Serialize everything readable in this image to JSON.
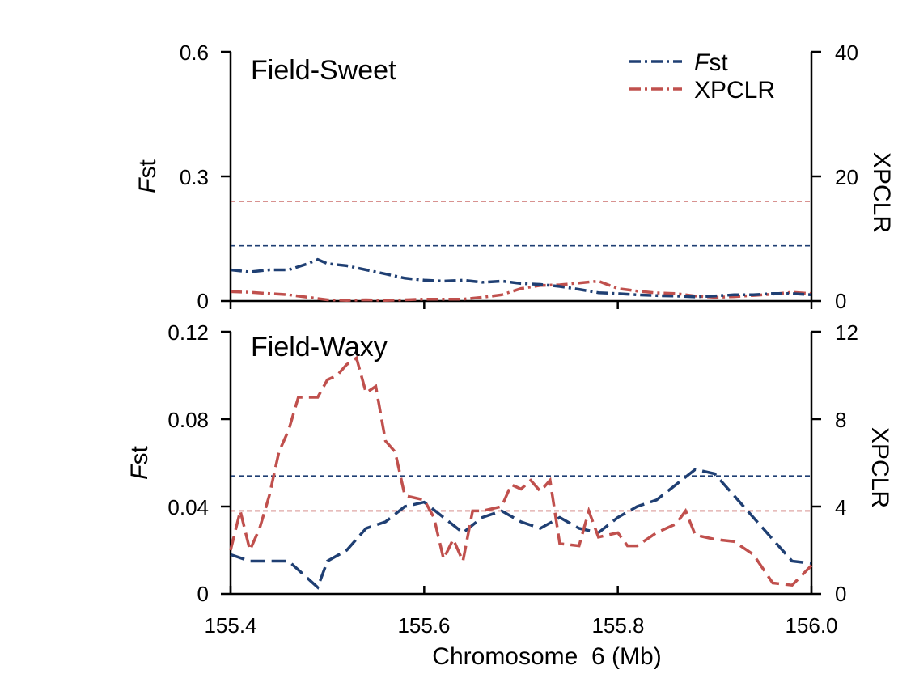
{
  "colors": {
    "fst": "#1f3f73",
    "xpclr": "#c0504d",
    "axis": "#000000"
  },
  "chart_data": [
    {
      "type": "line",
      "title": "Field-Sweet",
      "xlabel": "Chromosome  6 (Mb)",
      "ylabel_left": {
        "italic": "F",
        "rest": "st"
      },
      "ylabel_right": "XPCLR",
      "xlim": [
        155.4,
        156.0
      ],
      "ylim_left": [
        0,
        0.6
      ],
      "ylim_right": [
        0,
        40
      ],
      "yticks_left": [
        "0",
        "0.3",
        "0.6"
      ],
      "yticks_right": [
        "0",
        "20",
        "40"
      ],
      "legend": {
        "position": "top-right",
        "fst_italic": "F",
        "fst_rest": "st",
        "xpclr": "XPCLR"
      },
      "thresholds": {
        "fst": 0.133,
        "xpclr": 16.0
      },
      "series": [
        {
          "name": "Fst",
          "axis": "left",
          "x": [
            155.4,
            155.42,
            155.44,
            155.46,
            155.48,
            155.49,
            155.5,
            155.52,
            155.54,
            155.56,
            155.58,
            155.6,
            155.62,
            155.64,
            155.66,
            155.68,
            155.7,
            155.72,
            155.74,
            155.76,
            155.78,
            155.8,
            155.82,
            155.84,
            155.86,
            155.88,
            155.9,
            155.92,
            155.94,
            155.96,
            155.98,
            156.0
          ],
          "values": [
            0.075,
            0.07,
            0.075,
            0.075,
            0.09,
            0.1,
            0.09,
            0.085,
            0.075,
            0.065,
            0.055,
            0.05,
            0.048,
            0.05,
            0.045,
            0.048,
            0.042,
            0.04,
            0.035,
            0.028,
            0.02,
            0.018,
            0.015,
            0.013,
            0.012,
            0.01,
            0.012,
            0.015,
            0.015,
            0.018,
            0.018,
            0.015
          ]
        },
        {
          "name": "XPCLR",
          "axis": "right",
          "x": [
            155.4,
            155.42,
            155.44,
            155.46,
            155.48,
            155.5,
            155.52,
            155.54,
            155.56,
            155.58,
            155.6,
            155.62,
            155.64,
            155.66,
            155.68,
            155.7,
            155.72,
            155.74,
            155.76,
            155.78,
            155.8,
            155.82,
            155.84,
            155.86,
            155.88,
            155.9,
            155.92,
            155.94,
            155.96,
            155.98,
            156.0
          ],
          "values": [
            1.5,
            1.4,
            1.2,
            1.0,
            0.6,
            0.2,
            0.1,
            0.2,
            0.1,
            0.2,
            0.3,
            0.3,
            0.3,
            0.6,
            1.0,
            2.0,
            2.5,
            2.6,
            2.9,
            3.2,
            2.0,
            1.6,
            1.3,
            1.2,
            0.8,
            0.6,
            0.7,
            0.9,
            1.1,
            1.4,
            1.2
          ]
        }
      ]
    },
    {
      "type": "line",
      "title": "Field-Waxy",
      "xlabel": "Chromosome  6 (Mb)",
      "ylabel_left": {
        "italic": "F",
        "rest": "st"
      },
      "ylabel_right": "XPCLR",
      "xlim": [
        155.4,
        156.0
      ],
      "ylim_left": [
        0,
        0.12
      ],
      "ylim_right": [
        0,
        12
      ],
      "yticks_left": [
        "0",
        "0.04",
        "0.08",
        "0.12"
      ],
      "yticks_right": [
        "0",
        "4",
        "8",
        "12"
      ],
      "xticks": [
        "155.4",
        "155.6",
        "155.8",
        "156.0"
      ],
      "thresholds": {
        "fst": 0.054,
        "xpclr": 3.8
      },
      "series": [
        {
          "name": "Fst",
          "axis": "left",
          "x": [
            155.4,
            155.42,
            155.44,
            155.46,
            155.49,
            155.5,
            155.52,
            155.54,
            155.56,
            155.58,
            155.6,
            155.62,
            155.64,
            155.66,
            155.68,
            155.7,
            155.72,
            155.74,
            155.76,
            155.78,
            155.8,
            155.82,
            155.84,
            155.86,
            155.88,
            155.9,
            155.92,
            155.94,
            155.96,
            155.98,
            156.0
          ],
          "values": [
            0.018,
            0.015,
            0.015,
            0.015,
            0.003,
            0.015,
            0.02,
            0.03,
            0.033,
            0.04,
            0.042,
            0.035,
            0.028,
            0.035,
            0.038,
            0.033,
            0.03,
            0.035,
            0.03,
            0.028,
            0.035,
            0.04,
            0.043,
            0.05,
            0.057,
            0.055,
            0.045,
            0.035,
            0.025,
            0.015,
            0.014
          ]
        },
        {
          "name": "XPCLR",
          "axis": "right",
          "x": [
            155.4,
            155.41,
            155.42,
            155.43,
            155.44,
            155.45,
            155.46,
            155.47,
            155.48,
            155.49,
            155.5,
            155.51,
            155.52,
            155.53,
            155.54,
            155.55,
            155.56,
            155.57,
            155.58,
            155.6,
            155.61,
            155.62,
            155.63,
            155.64,
            155.65,
            155.66,
            155.68,
            155.69,
            155.7,
            155.71,
            155.72,
            155.73,
            155.74,
            155.76,
            155.77,
            155.78,
            155.8,
            155.81,
            155.82,
            155.84,
            155.86,
            155.87,
            155.88,
            155.9,
            155.92,
            155.94,
            155.96,
            155.98,
            156.0
          ],
          "values": [
            2.0,
            3.8,
            2.0,
            3.0,
            4.5,
            6.5,
            7.5,
            9.0,
            9.0,
            9.0,
            9.8,
            10.0,
            10.5,
            10.8,
            9.2,
            9.5,
            7.0,
            6.5,
            4.5,
            4.3,
            3.5,
            1.6,
            2.5,
            1.5,
            3.8,
            3.8,
            4.0,
            5.0,
            4.8,
            5.2,
            4.7,
            5.2,
            2.3,
            2.2,
            3.8,
            2.6,
            2.8,
            2.2,
            2.2,
            2.8,
            3.2,
            3.8,
            2.7,
            2.5,
            2.4,
            1.8,
            0.5,
            0.4,
            1.3
          ]
        }
      ]
    }
  ]
}
